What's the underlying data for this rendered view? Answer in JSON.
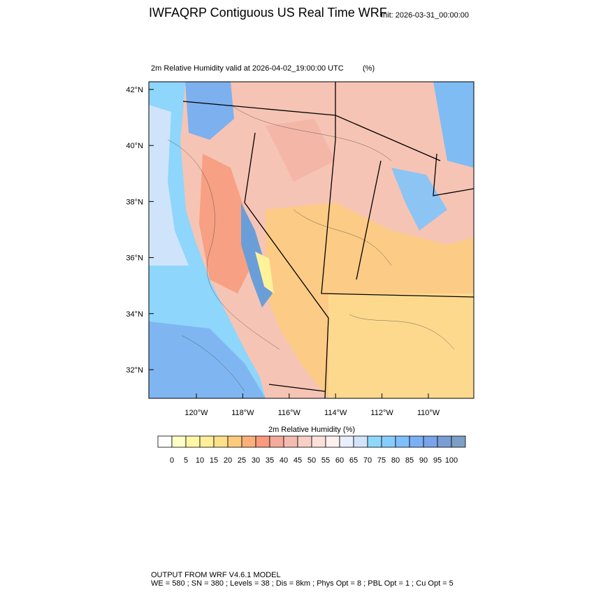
{
  "header": {
    "title": "IWFAQRP Contiguous US Real Time WRF",
    "init": "Init: 2026-03-31_00:00:00"
  },
  "plot": {
    "subtitle": "2m Relative Humidity valid at 2026-04-02_19:00:00 UTC",
    "units": "(%)",
    "lat_labels": [
      "42°N",
      "40°N",
      "38°N",
      "36°N",
      "34°N",
      "32°N"
    ],
    "lon_labels": [
      "120°W",
      "118°W",
      "116°W",
      "114°W",
      "112°W",
      "110°W"
    ]
  },
  "colorbar": {
    "title": "2m Relative Humidity  (%)",
    "labels": [
      0,
      5,
      10,
      15,
      20,
      25,
      30,
      35,
      40,
      45,
      50,
      55,
      60,
      65,
      70,
      75,
      80,
      85,
      90,
      95,
      100
    ],
    "colors": [
      "#ffffff",
      "#ffffc6",
      "#fff7a6",
      "#ffee9a",
      "#fde08a",
      "#fccb7c",
      "#fbb07a",
      "#f79a7e",
      "#f4aa9c",
      "#f3bcb0",
      "#f7cfc5",
      "#fbe1da",
      "#fdf1ee",
      "#e9efff",
      "#d3e4fb",
      "#8fd8fb",
      "#86cdfb",
      "#7fc0fa",
      "#7cb0f4",
      "#7aa3e8",
      "#7b9dd6",
      "#7d9fc4"
    ]
  },
  "footer": {
    "line1": "OUTPUT FROM WRF V4.6.1 MODEL",
    "line2": "WE = 580 ; SN = 380 ; Levels = 38 ; Dis = 8km ; Phys Opt = 8 ; PBL Opt = 1 ; Cu Opt = 5"
  }
}
